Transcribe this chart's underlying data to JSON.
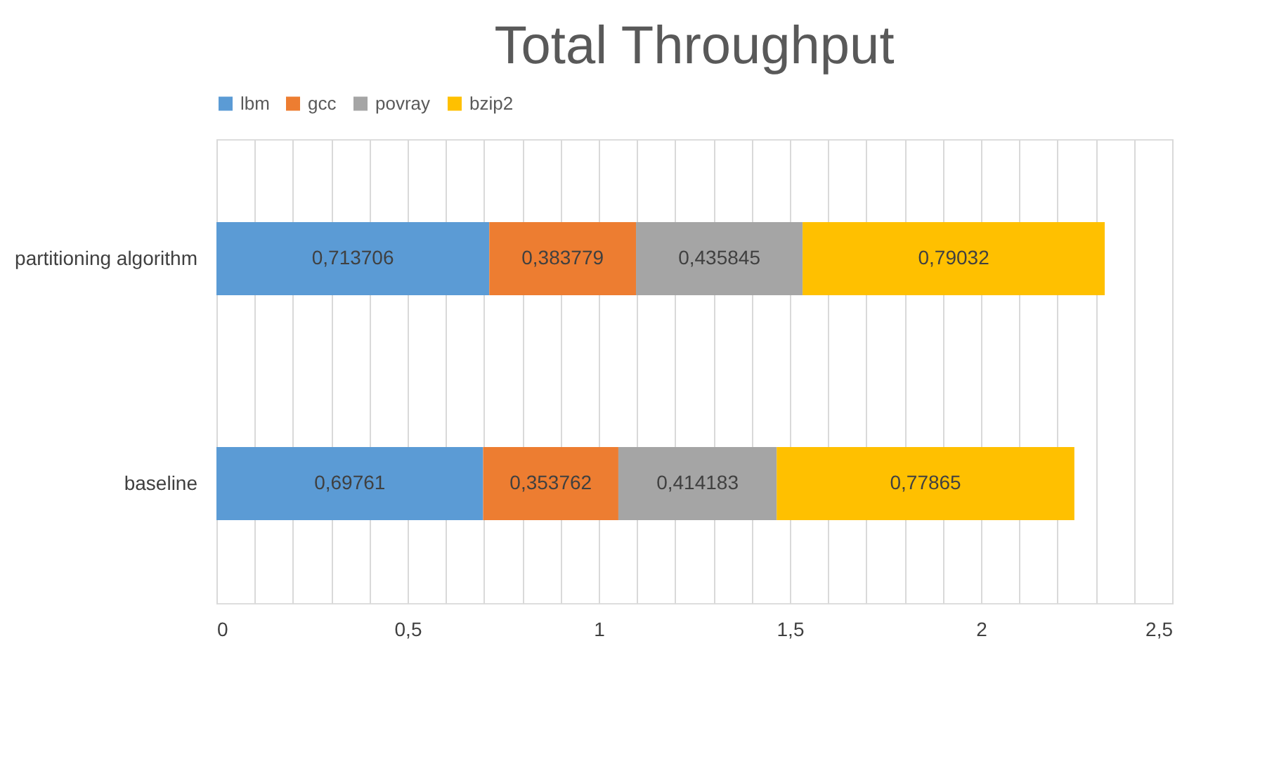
{
  "chart_data": {
    "type": "bar",
    "title": "Total Throughput",
    "orientation": "horizontal",
    "stacked": true,
    "categories": [
      "partitioning algorithm",
      "baseline"
    ],
    "series": [
      {
        "name": "lbm",
        "color": "#5b9bd5",
        "values": [
          0.713706,
          0.69761
        ],
        "value_labels": [
          "0,713706",
          "0,69761"
        ]
      },
      {
        "name": "gcc",
        "color": "#ed7d31",
        "values": [
          0.383779,
          0.353762
        ],
        "value_labels": [
          "0,383779",
          "0,353762"
        ]
      },
      {
        "name": "povray",
        "color": "#a5a5a5",
        "values": [
          0.435845,
          0.414183
        ],
        "value_labels": [
          "0,435845",
          "0,414183"
        ]
      },
      {
        "name": "bzip2",
        "color": "#ffc000",
        "values": [
          0.79032,
          0.77865
        ],
        "value_labels": [
          "0,79032",
          "0,77865"
        ]
      }
    ],
    "xlim": [
      0,
      2.5
    ],
    "xticks": [
      0,
      {
        "value": 0.1,
        "label": null
      },
      {
        "value": 0.2,
        "label": null
      },
      {
        "value": 0.3,
        "label": null
      },
      {
        "value": 0.4,
        "label": null
      },
      {
        "value": 0.5,
        "label": "0,5"
      },
      {
        "value": 0.6,
        "label": null
      },
      {
        "value": 0.7,
        "label": null
      },
      {
        "value": 0.8,
        "label": null
      },
      {
        "value": 0.9,
        "label": null
      },
      1,
      {
        "value": 1.1,
        "label": null
      },
      {
        "value": 1.2,
        "label": null
      },
      {
        "value": 1.3,
        "label": null
      },
      {
        "value": 1.4,
        "label": null
      },
      {
        "value": 1.5,
        "label": "1,5"
      },
      {
        "value": 1.6,
        "label": null
      },
      {
        "value": 1.7,
        "label": null
      },
      {
        "value": 1.8,
        "label": null
      },
      {
        "value": 1.9,
        "label": null
      },
      2,
      {
        "value": 2.1,
        "label": null
      },
      {
        "value": 2.2,
        "label": null
      },
      {
        "value": 2.3,
        "label": null
      },
      {
        "value": 2.4,
        "label": null
      },
      {
        "value": 2.5,
        "label": "2,5"
      }
    ],
    "grid": "x",
    "legend": "top"
  }
}
